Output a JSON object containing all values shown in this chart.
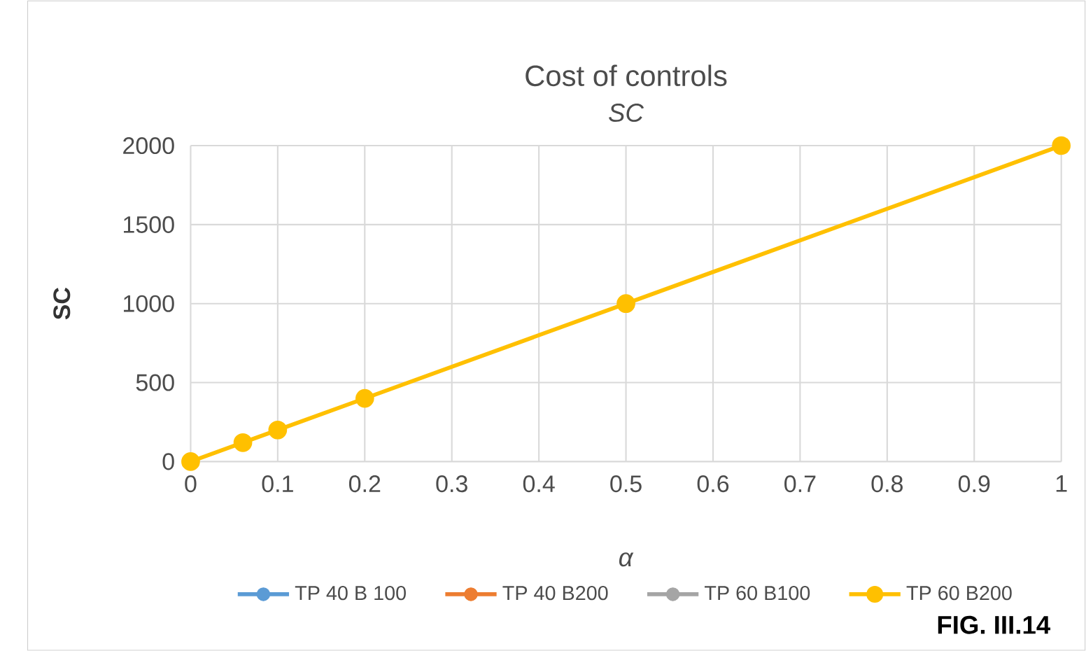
{
  "chart_data": {
    "type": "line",
    "title": "Cost of controls",
    "subtitle": "*SC*",
    "xlabel": "*α*",
    "ylabel": "**SC**",
    "x": [
      0,
      0.06,
      0.1,
      0.2,
      0.5,
      1
    ],
    "series": [
      {
        "name": "TP 40 B 100",
        "color": "#5b9bd5",
        "values": [
          null,
          null,
          null,
          null,
          null,
          null
        ]
      },
      {
        "name": "TP 40 B200",
        "color": "#ed7d31",
        "values": [
          null,
          null,
          null,
          null,
          null,
          null
        ]
      },
      {
        "name": "TP 60 B100",
        "color": "#a5a5a5",
        "values": [
          null,
          null,
          null,
          null,
          null,
          null
        ]
      },
      {
        "name": "TP 60 B200",
        "color": "#ffc000",
        "values": [
          0,
          120,
          200,
          400,
          1000,
          2000
        ]
      }
    ],
    "xlim": [
      0,
      1
    ],
    "xticks": [
      0,
      0.1,
      0.2,
      0.3,
      0.4,
      0.5,
      0.6,
      0.7,
      0.8,
      0.9,
      1
    ],
    "ylim": [
      0,
      2000
    ],
    "yticks": [
      0,
      500,
      1000,
      1500,
      2000
    ],
    "grid": true,
    "legend": "bottom",
    "marker": "circle",
    "line_style": "solid",
    "annotations": [
      "**FIG. III.14**"
    ]
  }
}
